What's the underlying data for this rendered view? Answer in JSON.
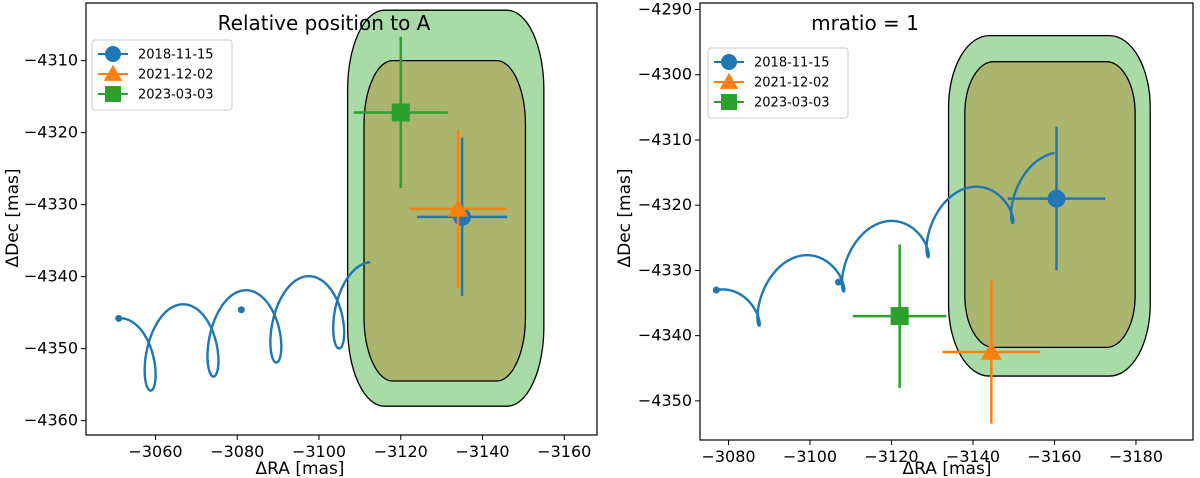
{
  "colors": {
    "blue": "#1f77b4",
    "orange": "#ff7f0e",
    "green": "#2ca02c",
    "outer_region": "#a8dba6",
    "inner_region": "#abb56e"
  },
  "chart_data": [
    {
      "type": "scatter",
      "title": "Relative position to A",
      "xlabel": "ΔRA [mas]",
      "ylabel": "ΔDec [mas]",
      "xlim": [
        -3043,
        -3168
      ],
      "ylim": [
        -4362,
        -4302
      ],
      "xticks": [
        -3060,
        -3080,
        -3100,
        -3120,
        -3140,
        -3160
      ],
      "yticks": [
        -4310,
        -4320,
        -4330,
        -4340,
        -4350,
        -4360
      ],
      "legend": "top-left",
      "grid": false,
      "outer_region": {
        "ra": [
          -3107,
          -3155
        ],
        "dec": [
          -4303,
          -4358
        ],
        "corner_ra": 9,
        "corner_dec": 11
      },
      "inner_region": {
        "ra": [
          -3111,
          -3150.5
        ],
        "dec": [
          -4310,
          -4354.5
        ],
        "corner_ra": 7,
        "corner_dec": 9
      },
      "series": [
        {
          "name": "2018-11-15",
          "marker": "circle",
          "color": "#1f77b4",
          "x": -3135,
          "y": -4331.7,
          "xerr": 11,
          "yerr": 11
        },
        {
          "name": "2021-12-02",
          "marker": "triangle",
          "color": "#ff7f0e",
          "x": -3134,
          "y": -4330.6,
          "xerr": 12,
          "yerr": 11
        },
        {
          "name": "2023-03-03",
          "marker": "square",
          "color": "#2ca02c",
          "x": -3120,
          "y": -4317.2,
          "xerr": 11.5,
          "yerr": 10.5
        }
      ],
      "track": {
        "start": [
          -3051,
          -4345.8
        ],
        "end": [
          -3112.5,
          -4338
        ],
        "loops": 4,
        "loop_amp_x": 4.5,
        "loop_amp_y": 11,
        "endpoints_markers": [
          [
            -3051,
            -4345.8
          ],
          [
            -3081,
            -4344.6
          ]
        ]
      }
    },
    {
      "type": "scatter",
      "title": "mratio = 1",
      "xlabel": "ΔRA [mas]",
      "ylabel": "ΔDec [mas]",
      "xlim": [
        -3073,
        -3194
      ],
      "ylim": [
        -4356,
        -4289
      ],
      "xticks": [
        -3080,
        -3100,
        -3120,
        -3140,
        -3160,
        -3180
      ],
      "yticks": [
        -4290,
        -4300,
        -4310,
        -4320,
        -4330,
        -4340,
        -4350
      ],
      "legend": "top-left",
      "grid": false,
      "outer_region": {
        "ra": [
          -3134,
          -3183.5
        ],
        "dec": [
          -4294,
          -4346.2
        ],
        "corner_ra": 10,
        "corner_dec": 11
      },
      "inner_region": {
        "ra": [
          -3138,
          -3179.8
        ],
        "dec": [
          -4298,
          -4341.8
        ],
        "corner_ra": 7,
        "corner_dec": 8
      },
      "series": [
        {
          "name": "2018-11-15",
          "marker": "circle",
          "color": "#1f77b4",
          "x": -3160.5,
          "y": -4319,
          "xerr": 12,
          "yerr": 11
        },
        {
          "name": "2021-12-02",
          "marker": "triangle",
          "color": "#ff7f0e",
          "x": -3144.5,
          "y": -4342.5,
          "xerr": 12,
          "yerr": 11
        },
        {
          "name": "2023-03-03",
          "marker": "square",
          "color": "#2ca02c",
          "x": -3122,
          "y": -4337,
          "xerr": 11.5,
          "yerr": 11
        }
      ],
      "track": {
        "start": [
          -3077,
          -4333
        ],
        "end": [
          -3160,
          -4312
        ],
        "loops": 4,
        "loop_amp_x": 4,
        "loop_amp_y": 8,
        "endpoints_markers": [
          [
            -3077,
            -4333
          ],
          [
            -3107,
            -4331.8
          ]
        ]
      }
    }
  ]
}
